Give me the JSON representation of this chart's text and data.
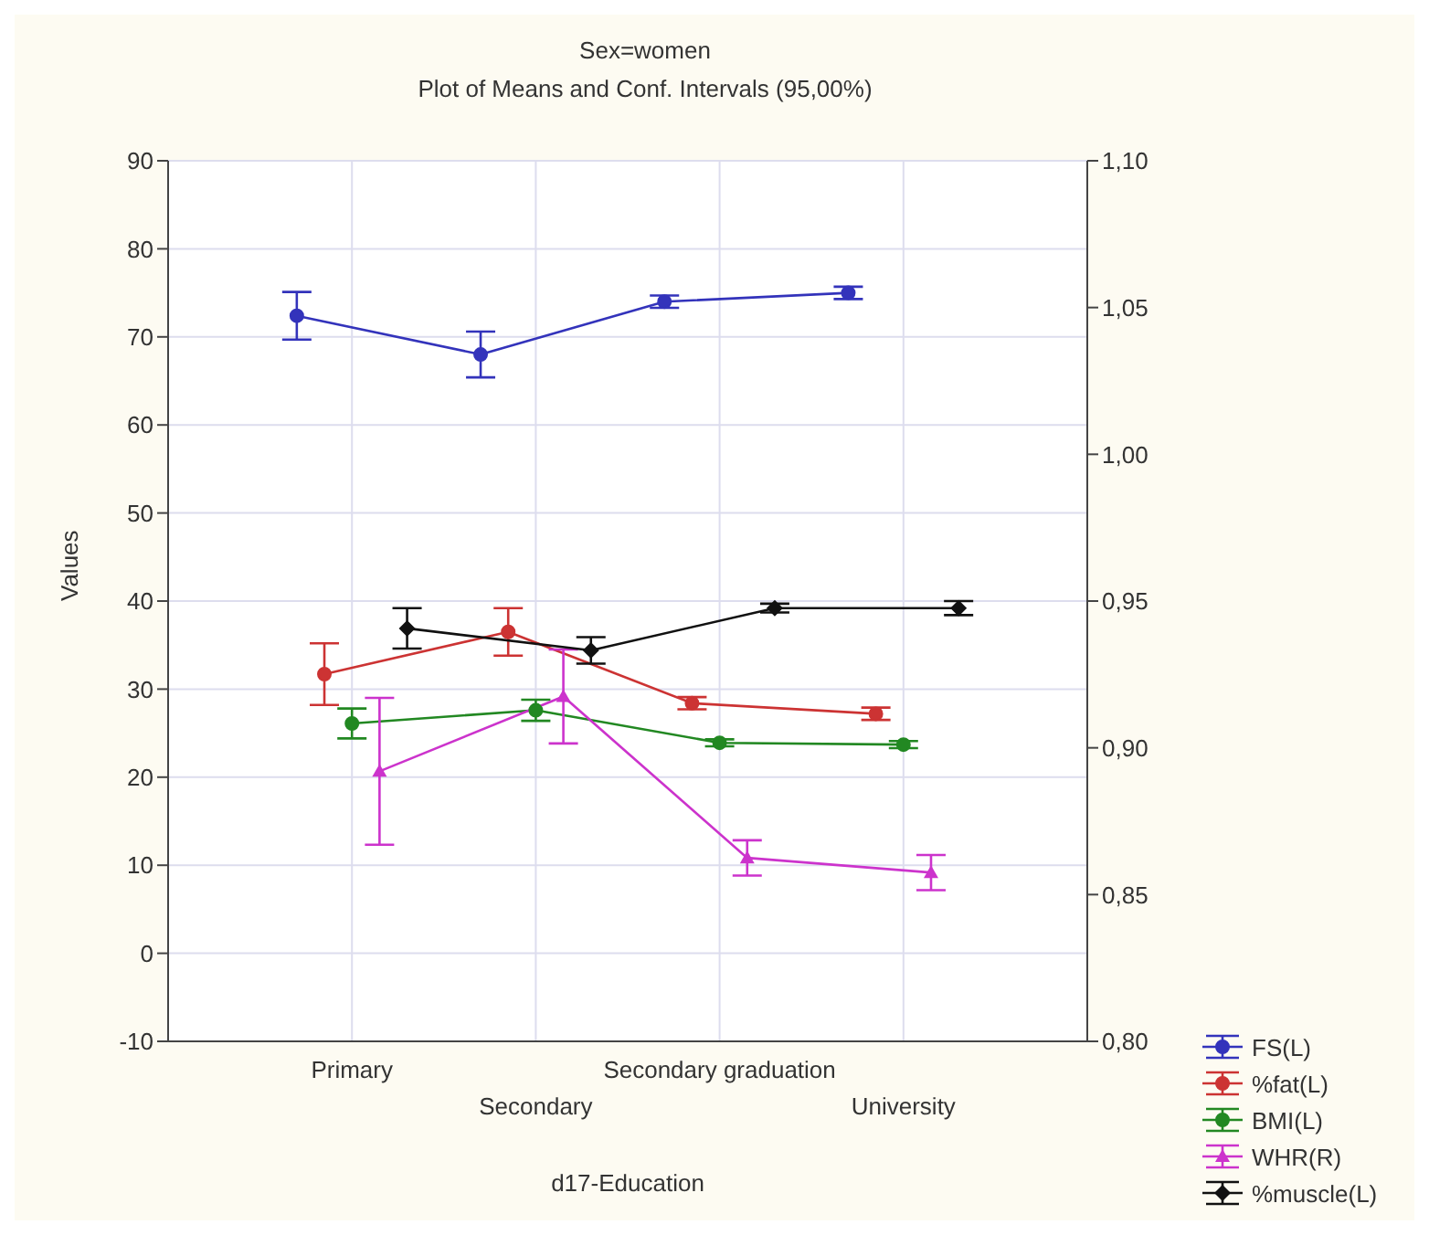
{
  "chart_data": {
    "type": "line",
    "title": "Sex=women",
    "subtitle": "Plot of Means and Conf. Intervals (95,00%)",
    "xlabel": "d17-Education",
    "ylabel": "Values",
    "categories": [
      "Primary",
      "Secondary",
      "Secondary graduation",
      "University"
    ],
    "ylim": [
      -10,
      90
    ],
    "yticks": [
      -10,
      0,
      10,
      20,
      30,
      40,
      50,
      60,
      70,
      80,
      90
    ],
    "y2lim": [
      0.8,
      1.1
    ],
    "y2ticks": [
      {
        "value": 0.8,
        "label": "0,80"
      },
      {
        "value": 0.85,
        "label": "0,85"
      },
      {
        "value": 0.9,
        "label": "0,90"
      },
      {
        "value": 0.95,
        "label": "0,95"
      },
      {
        "value": 1.0,
        "label": "1,00"
      },
      {
        "value": 1.05,
        "label": "1,05"
      },
      {
        "value": 1.1,
        "label": "1,10"
      }
    ],
    "grid": true,
    "legend": "bottom right",
    "line_style": "solid",
    "series": [
      {
        "name": "FS(L)",
        "color": "#3333bb",
        "marker": "circle",
        "values": [
          72.4,
          68,
          74,
          75
        ],
        "errors": [
          2.7,
          2.6,
          0.7,
          0.7
        ]
      },
      {
        "name": "%fat(L)",
        "color": "#cc3333",
        "marker": "circle",
        "values": [
          31.7,
          36.5,
          28.4,
          27.2
        ],
        "errors": [
          3.5,
          2.7,
          0.7,
          0.7
        ]
      },
      {
        "name": "BMI(L)",
        "color": "#228822",
        "marker": "circle",
        "values": [
          26.1,
          27.6,
          23.9,
          23.7
        ],
        "errors": [
          1.7,
          1.2,
          0.4,
          0.4
        ]
      },
      {
        "name": "WHR(R)",
        "color": "#cc33cc",
        "marker": "triangle",
        "axis": "y2",
        "values": [
          0.892,
          0.9175,
          0.8625,
          0.8575
        ],
        "errors": [
          0.025,
          0.016,
          0.006,
          0.006
        ]
      },
      {
        "name": "%muscle(L)",
        "color": "#111111",
        "marker": "diamond",
        "values": [
          36.9,
          34.4,
          39.2,
          39.2
        ],
        "errors": [
          2.3,
          1.5,
          0.5,
          0.8
        ]
      }
    ]
  }
}
